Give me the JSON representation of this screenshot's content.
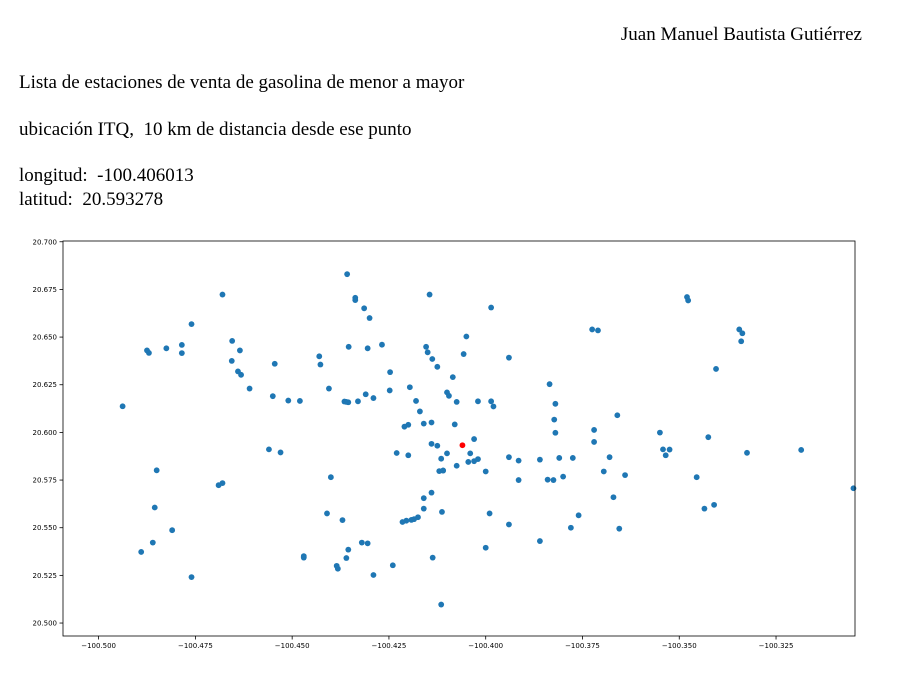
{
  "header": {
    "author": "Juan Manuel Bautista Gutiérrez",
    "line1": "Lista de estaciones de venta de gasolina de menor a mayor",
    "line2": "ubicación ITQ,  10 km de distancia desde ese punto",
    "longitude": "longitud:  -100.406013",
    "latitude": "latitud:  20.593278"
  },
  "colors": {
    "points": "#1f77b4",
    "reference": "#ff0000",
    "axes": "#000000"
  },
  "chart_data": {
    "type": "scatter",
    "title": "",
    "xlabel": "",
    "ylabel": "",
    "grid": false,
    "xlim": [
      -100.5092,
      -100.3046
    ],
    "ylim": [
      20.4932,
      20.7004
    ],
    "xticks": [
      -100.5,
      -100.475,
      -100.45,
      -100.425,
      -100.4,
      -100.375,
      -100.35,
      -100.325
    ],
    "xtick_labels": [
      "−100.500",
      "−100.475",
      "−100.450",
      "−100.425",
      "−100.400",
      "−100.375",
      "−100.350",
      "−100.325"
    ],
    "yticks": [
      20.5,
      20.525,
      20.55,
      20.575,
      20.6,
      20.625,
      20.65,
      20.675,
      20.7
    ],
    "ytick_labels": [
      "20.500",
      "20.525",
      "20.550",
      "20.575",
      "20.600",
      "20.625",
      "20.650",
      "20.675",
      "20.700"
    ],
    "reference_point": {
      "x": -100.406013,
      "y": 20.593278
    },
    "points": [
      {
        "x": -100.4358,
        "y": 20.683
      },
      {
        "x": -100.4337,
        "y": 20.6706
      },
      {
        "x": -100.4337,
        "y": 20.6694
      },
      {
        "x": -100.4314,
        "y": 20.6651
      },
      {
        "x": -100.43,
        "y": 20.66
      },
      {
        "x": -100.4145,
        "y": 20.6723
      },
      {
        "x": -100.3986,
        "y": 20.6655
      },
      {
        "x": -100.468,
        "y": 20.6723
      },
      {
        "x": -100.476,
        "y": 20.6568
      },
      {
        "x": -100.4785,
        "y": 20.6459
      },
      {
        "x": -100.4785,
        "y": 20.6416
      },
      {
        "x": -100.4875,
        "y": 20.643
      },
      {
        "x": -100.487,
        "y": 20.6417
      },
      {
        "x": -100.4825,
        "y": 20.6441
      },
      {
        "x": -100.4938,
        "y": 20.6137
      },
      {
        "x": -100.4655,
        "y": 20.648
      },
      {
        "x": -100.4635,
        "y": 20.643
      },
      {
        "x": -100.4656,
        "y": 20.6375
      },
      {
        "x": -100.464,
        "y": 20.632
      },
      {
        "x": -100.4632,
        "y": 20.6302
      },
      {
        "x": -100.461,
        "y": 20.623
      },
      {
        "x": -100.4545,
        "y": 20.636
      },
      {
        "x": -100.455,
        "y": 20.619
      },
      {
        "x": -100.451,
        "y": 20.6167
      },
      {
        "x": -100.448,
        "y": 20.6165
      },
      {
        "x": -100.443,
        "y": 20.6399
      },
      {
        "x": -100.4427,
        "y": 20.6356
      },
      {
        "x": -100.4405,
        "y": 20.623
      },
      {
        "x": -100.436,
        "y": 20.616
      },
      {
        "x": -100.4355,
        "y": 20.6158
      },
      {
        "x": -100.4365,
        "y": 20.6162
      },
      {
        "x": -100.433,
        "y": 20.6163
      },
      {
        "x": -100.431,
        "y": 20.62
      },
      {
        "x": -100.429,
        "y": 20.618
      },
      {
        "x": -100.4248,
        "y": 20.622
      },
      {
        "x": -100.4247,
        "y": 20.6316
      },
      {
        "x": -100.4268,
        "y": 20.646
      },
      {
        "x": -100.4305,
        "y": 20.6441
      },
      {
        "x": -100.4354,
        "y": 20.6449
      },
      {
        "x": -100.4196,
        "y": 20.6237
      },
      {
        "x": -100.418,
        "y": 20.6165
      },
      {
        "x": -100.4154,
        "y": 20.6449
      },
      {
        "x": -100.415,
        "y": 20.642
      },
      {
        "x": -100.4138,
        "y": 20.6385
      },
      {
        "x": -100.4125,
        "y": 20.6344
      },
      {
        "x": -100.4085,
        "y": 20.629
      },
      {
        "x": -100.4057,
        "y": 20.6411
      },
      {
        "x": -100.405,
        "y": 20.6503
      },
      {
        "x": -100.41,
        "y": 20.621
      },
      {
        "x": -100.4095,
        "y": 20.6192
      },
      {
        "x": -100.4075,
        "y": 20.616
      },
      {
        "x": -100.402,
        "y": 20.6163
      },
      {
        "x": -100.3986,
        "y": 20.6163
      },
      {
        "x": -100.398,
        "y": 20.6136
      },
      {
        "x": -100.394,
        "y": 20.6392
      },
      {
        "x": -100.417,
        "y": 20.611
      },
      {
        "x": -100.416,
        "y": 20.6046
      },
      {
        "x": -100.414,
        "y": 20.6052
      },
      {
        "x": -100.42,
        "y": 20.604
      },
      {
        "x": -100.421,
        "y": 20.603
      },
      {
        "x": -100.408,
        "y": 20.6042
      },
      {
        "x": -100.414,
        "y": 20.594
      },
      {
        "x": -100.4125,
        "y": 20.593
      },
      {
        "x": -100.41,
        "y": 20.589
      },
      {
        "x": -100.4115,
        "y": 20.5862
      },
      {
        "x": -100.403,
        "y": 20.5965
      },
      {
        "x": -100.404,
        "y": 20.589
      },
      {
        "x": -100.4045,
        "y": 20.5845
      },
      {
        "x": -100.403,
        "y": 20.5849
      },
      {
        "x": -100.402,
        "y": 20.586
      },
      {
        "x": -100.4075,
        "y": 20.5825
      },
      {
        "x": -100.411,
        "y": 20.58
      },
      {
        "x": -100.412,
        "y": 20.5797
      },
      {
        "x": -100.4,
        "y": 20.5795
      },
      {
        "x": -100.42,
        "y": 20.588
      },
      {
        "x": -100.423,
        "y": 20.5892
      },
      {
        "x": -100.414,
        "y": 20.5684
      },
      {
        "x": -100.416,
        "y": 20.5655
      },
      {
        "x": -100.416,
        "y": 20.56
      },
      {
        "x": -100.4113,
        "y": 20.5583
      },
      {
        "x": -100.4185,
        "y": 20.5545
      },
      {
        "x": -100.4192,
        "y": 20.5541
      },
      {
        "x": -100.4205,
        "y": 20.5537
      },
      {
        "x": -100.4215,
        "y": 20.553
      },
      {
        "x": -100.4175,
        "y": 20.5555
      },
      {
        "x": -100.4137,
        "y": 20.5343
      },
      {
        "x": -100.411,
        "y": 20.58
      },
      {
        "x": -100.399,
        "y": 20.5575
      },
      {
        "x": -100.4,
        "y": 20.5395
      },
      {
        "x": -100.394,
        "y": 20.5517
      },
      {
        "x": -100.394,
        "y": 20.587
      },
      {
        "x": -100.3915,
        "y": 20.5852
      },
      {
        "x": -100.3915,
        "y": 20.575
      },
      {
        "x": -100.386,
        "y": 20.5857
      },
      {
        "x": -100.386,
        "y": 20.543
      },
      {
        "x": -100.384,
        "y": 20.5752
      },
      {
        "x": -100.3825,
        "y": 20.575
      },
      {
        "x": -100.38,
        "y": 20.5768
      },
      {
        "x": -100.381,
        "y": 20.5866
      },
      {
        "x": -100.3775,
        "y": 20.5866
      },
      {
        "x": -100.376,
        "y": 20.5565
      },
      {
        "x": -100.378,
        "y": 20.55
      },
      {
        "x": -100.3835,
        "y": 20.6253
      },
      {
        "x": -100.382,
        "y": 20.615
      },
      {
        "x": -100.3823,
        "y": 20.6067
      },
      {
        "x": -100.382,
        "y": 20.5998
      },
      {
        "x": -100.372,
        "y": 20.6013
      },
      {
        "x": -100.372,
        "y": 20.595
      },
      {
        "x": -100.3725,
        "y": 20.654
      },
      {
        "x": -100.371,
        "y": 20.6535
      },
      {
        "x": -100.366,
        "y": 20.609
      },
      {
        "x": -100.368,
        "y": 20.587
      },
      {
        "x": -100.3695,
        "y": 20.5795
      },
      {
        "x": -100.367,
        "y": 20.566
      },
      {
        "x": -100.3655,
        "y": 20.5495
      },
      {
        "x": -100.364,
        "y": 20.5776
      },
      {
        "x": -100.355,
        "y": 20.5999
      },
      {
        "x": -100.3542,
        "y": 20.5911
      },
      {
        "x": -100.3535,
        "y": 20.588
      },
      {
        "x": -100.3525,
        "y": 20.591
      },
      {
        "x": -100.348,
        "y": 20.671
      },
      {
        "x": -100.3477,
        "y": 20.6692
      },
      {
        "x": -100.3455,
        "y": 20.5765
      },
      {
        "x": -100.3435,
        "y": 20.56
      },
      {
        "x": -100.341,
        "y": 20.562
      },
      {
        "x": -100.3425,
        "y": 20.5975
      },
      {
        "x": -100.3405,
        "y": 20.6333
      },
      {
        "x": -100.3345,
        "y": 20.654
      },
      {
        "x": -100.3337,
        "y": 20.652
      },
      {
        "x": -100.334,
        "y": 20.6478
      },
      {
        "x": -100.3325,
        "y": 20.5893
      },
      {
        "x": -100.3185,
        "y": 20.5908
      },
      {
        "x": -100.305,
        "y": 20.5707
      },
      {
        "x": -100.456,
        "y": 20.5911
      },
      {
        "x": -100.453,
        "y": 20.5895
      },
      {
        "x": -100.44,
        "y": 20.5765
      },
      {
        "x": -100.437,
        "y": 20.554
      },
      {
        "x": -100.441,
        "y": 20.5575
      },
      {
        "x": -100.447,
        "y": 20.5351
      },
      {
        "x": -100.447,
        "y": 20.5343
      },
      {
        "x": -100.424,
        "y": 20.5303
      },
      {
        "x": -100.4355,
        "y": 20.5385
      },
      {
        "x": -100.432,
        "y": 20.5422
      },
      {
        "x": -100.4305,
        "y": 20.5418
      },
      {
        "x": -100.436,
        "y": 20.5341
      },
      {
        "x": -100.4385,
        "y": 20.53
      },
      {
        "x": -100.4382,
        "y": 20.5285
      },
      {
        "x": -100.429,
        "y": 20.5252
      },
      {
        "x": -100.4115,
        "y": 20.5097
      },
      {
        "x": -100.476,
        "y": 20.5241
      },
      {
        "x": -100.485,
        "y": 20.5801
      },
      {
        "x": -100.4855,
        "y": 20.5606
      },
      {
        "x": -100.481,
        "y": 20.5487
      },
      {
        "x": -100.486,
        "y": 20.5422
      },
      {
        "x": -100.489,
        "y": 20.5373
      },
      {
        "x": -100.468,
        "y": 20.5734
      },
      {
        "x": -100.469,
        "y": 20.5723
      }
    ]
  }
}
